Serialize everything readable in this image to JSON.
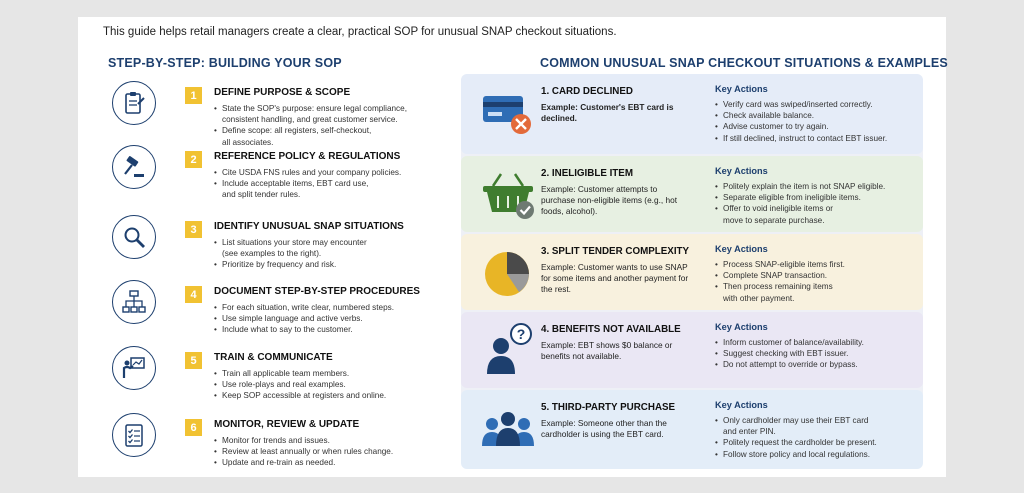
{
  "intro": "This guide helps retail managers create a clear, practical SOP for unusual SNAP checkout situations.",
  "left_heading": "STEP-BY-STEP: BUILDING YOUR SOP",
  "right_heading": "COMMON UNUSUAL SNAP CHECKOUT SITUATIONS & EXAMPLES",
  "steps": [
    {
      "num": "1",
      "icon": "clipboard-icon",
      "title": "DEFINE PURPOSE & SCOPE",
      "bullets": [
        "State the SOP's purpose: ensure legal compliance,\nconsistent handling, and great customer service.",
        "Define scope: all registers, self-checkout,\nall associates."
      ]
    },
    {
      "num": "2",
      "icon": "gavel-icon",
      "title": "REFERENCE POLICY & REGULATIONS",
      "bullets": [
        "Cite USDA FNS rules and your company policies.",
        "Include acceptable items, EBT card use,\nand split tender rules."
      ]
    },
    {
      "num": "3",
      "icon": "magnifier-icon",
      "title": "IDENTIFY UNUSUAL SNAP SITUATIONS",
      "bullets": [
        "List situations your store may encounter\n(see examples to the right).",
        "Prioritize by frequency and risk."
      ]
    },
    {
      "num": "4",
      "icon": "flowchart-icon",
      "title": "DOCUMENT STEP-BY-STEP PROCEDURES",
      "bullets": [
        "For each situation, write clear, numbered steps.",
        "Use simple language and active verbs.",
        "Include what to say to the customer."
      ]
    },
    {
      "num": "5",
      "icon": "presenter-icon",
      "title": "TRAIN & COMMUNICATE",
      "bullets": [
        "Train all applicable team members.",
        "Use role-plays and real examples.",
        "Keep SOP accessible at registers and online."
      ]
    },
    {
      "num": "6",
      "icon": "checklist-icon",
      "title": "MONITOR, REVIEW & UPDATE",
      "bullets": [
        "Monitor for trends and issues.",
        "Review at least annually or when rules change.",
        "Update and re-train as needed."
      ]
    }
  ],
  "key_actions_label": "Key Actions",
  "situations": [
    {
      "icon": "card-declined-icon",
      "bg": "#e5ecf8",
      "title": "1. CARD DECLINED",
      "example": "Example: Customer's EBT card is declined.",
      "actions": [
        "Verify card was swiped/inserted correctly.",
        "Check available balance.",
        "Advise customer to try again.",
        "If still declined, instruct to contact EBT issuer."
      ]
    },
    {
      "icon": "basket-icon",
      "bg": "#e7f0e2",
      "title": "2. INELIGIBLE ITEM",
      "example": "Example: Customer attempts to purchase non-eligible items (e.g., hot foods, alcohol).",
      "actions": [
        "Politely explain the item is not SNAP eligible.",
        "Separate eligible from ineligible items.",
        "Offer to void ineligible items or\nmove to separate purchase."
      ]
    },
    {
      "icon": "pie-icon",
      "bg": "#f8f1de",
      "title": "3. SPLIT TENDER COMPLEXITY",
      "example": "Example: Customer wants to use SNAP for some items and another payment for the rest.",
      "actions": [
        "Process SNAP-eligible items first.",
        "Complete SNAP transaction.",
        "Then process remaining items\nwith other payment."
      ]
    },
    {
      "icon": "question-person-icon",
      "bg": "#eae7f4",
      "title": "4. BENEFITS NOT AVAILABLE",
      "example": "Example: EBT shows $0 balance or benefits not available.",
      "actions": [
        "Inform customer of balance/availability.",
        "Suggest checking with EBT issuer.",
        "Do not attempt to override or bypass."
      ]
    },
    {
      "icon": "group-icon",
      "bg": "#e3edf8",
      "title": "5. THIRD-PARTY PURCHASE",
      "example": "Example: Someone other than the cardholder is using the EBT card.",
      "actions": [
        "Only cardholder may use their EBT card\nand enter PIN.",
        "Politely request the cardholder be present.",
        "Follow store policy and local regulations."
      ]
    }
  ],
  "colors": {
    "navy": "#1d3f6e",
    "accent_yellow": "#f1c232",
    "blue": "#2f6db5",
    "green": "#3f7d2f",
    "red": "#e36a3a"
  }
}
